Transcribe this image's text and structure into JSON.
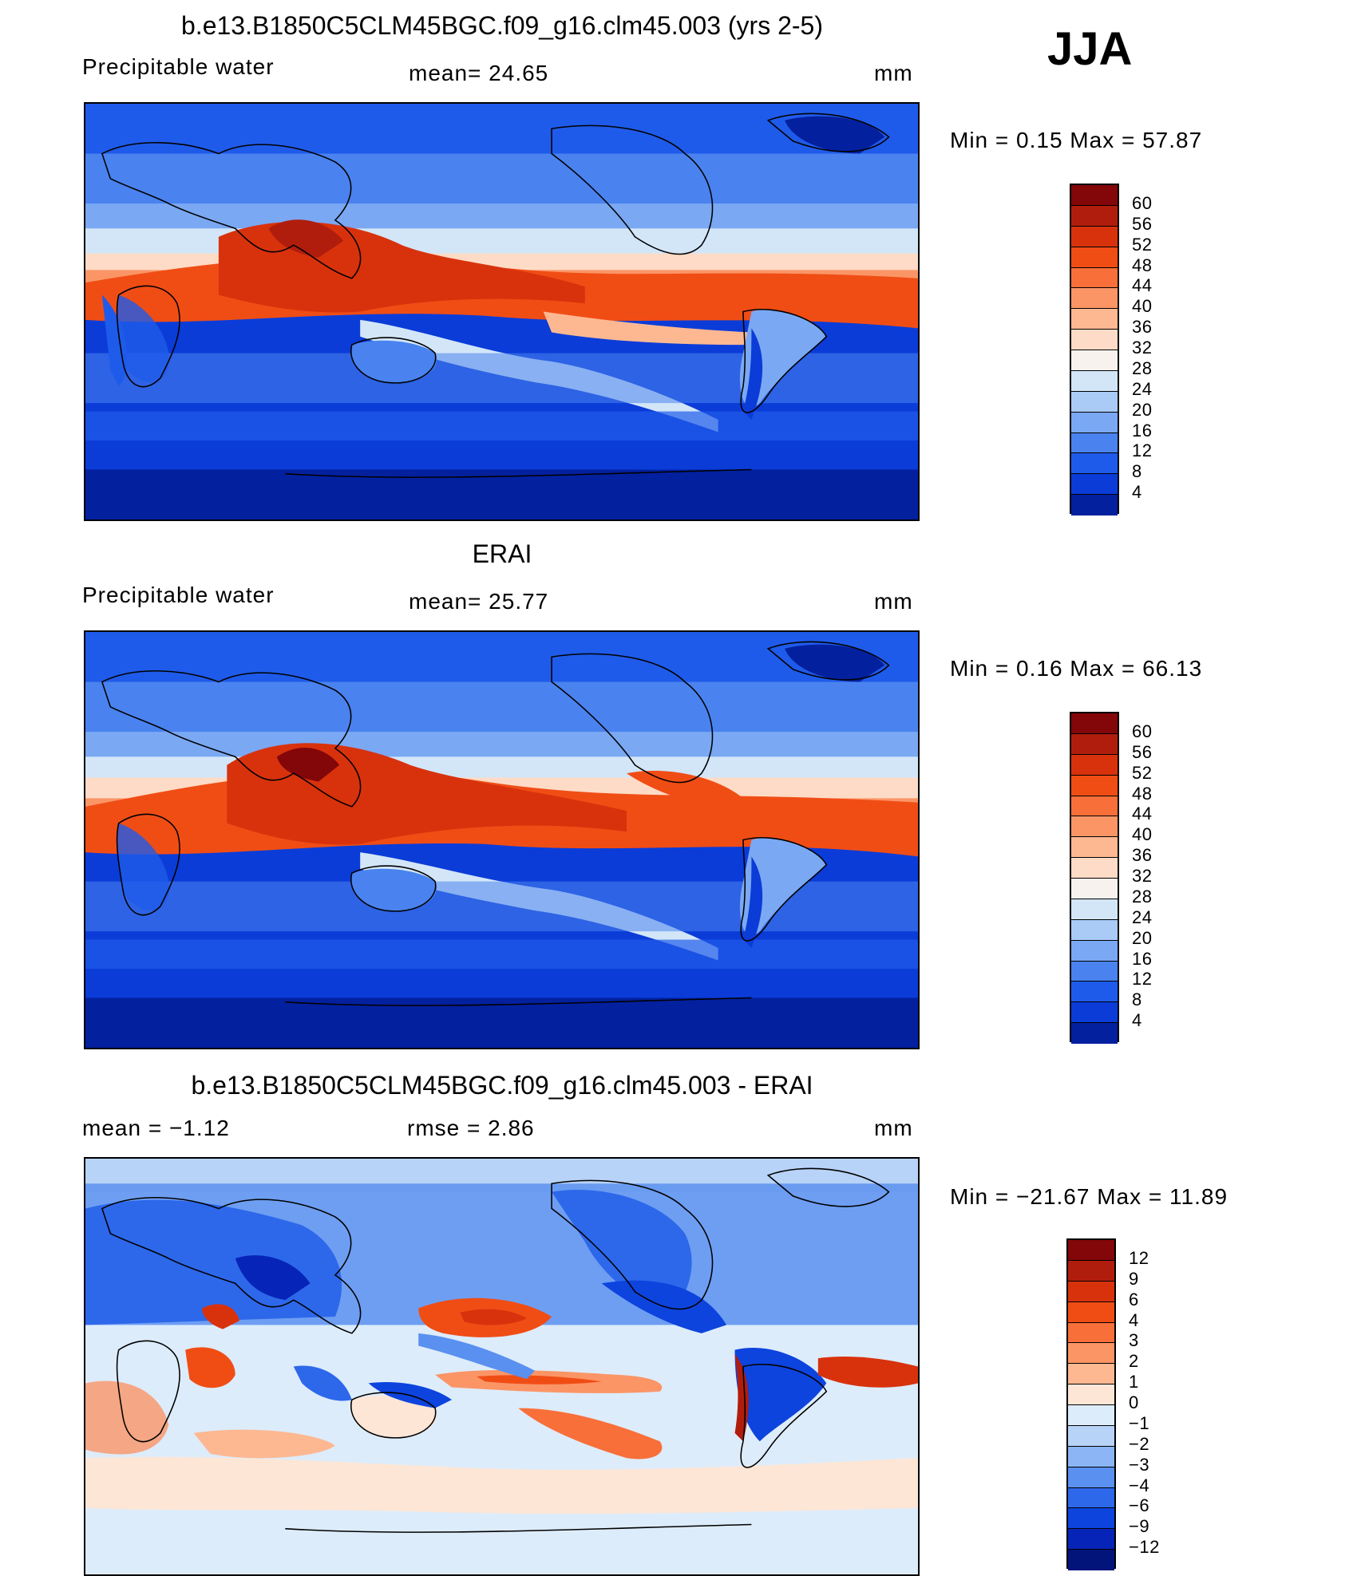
{
  "season": "JJA",
  "chart_data": [
    {
      "type": "heatmap",
      "title": "b.e13.B1850C5CLM45BGC.f09_g16.clm45.003 (yrs 2-5)",
      "left_label": "Precipitable  water",
      "center_label": "mean=   24.65",
      "units": "mm",
      "min_max": "Min  =     0.15  Max  =    57.87",
      "min": 0.15,
      "max": 57.87,
      "mean": 24.65,
      "colorbar": {
        "levels": [
          "60",
          "56",
          "52",
          "48",
          "44",
          "40",
          "36",
          "32",
          "28",
          "24",
          "20",
          "16",
          "12",
          "8",
          "4"
        ],
        "colors": [
          "#830608",
          "#b11d0c",
          "#d8320d",
          "#f04d15",
          "#f96f3a",
          "#fb9566",
          "#fdb892",
          "#fddbc6",
          "#f7f2ee",
          "#d2e6f8",
          "#a9cbf6",
          "#7aa8f3",
          "#4a83ef",
          "#1f5bea",
          "#0b3cd8",
          "#03209f"
        ]
      }
    },
    {
      "type": "heatmap",
      "title": "ERAI",
      "left_label": "Precipitable  water",
      "center_label": "mean=   25.77",
      "units": "mm",
      "min_max": "Min  =     0.16  Max  =    66.13",
      "min": 0.16,
      "max": 66.13,
      "mean": 25.77,
      "colorbar": {
        "levels": [
          "60",
          "56",
          "52",
          "48",
          "44",
          "40",
          "36",
          "32",
          "28",
          "24",
          "20",
          "16",
          "12",
          "8",
          "4"
        ],
        "colors": [
          "#830608",
          "#b11d0c",
          "#d8320d",
          "#f04d15",
          "#f96f3a",
          "#fb9566",
          "#fdb892",
          "#fddbc6",
          "#f7f2ee",
          "#d2e6f8",
          "#a9cbf6",
          "#7aa8f3",
          "#4a83ef",
          "#1f5bea",
          "#0b3cd8",
          "#03209f"
        ]
      }
    },
    {
      "type": "heatmap",
      "title": "b.e13.B1850C5CLM45BGC.f09_g16.clm45.003 - ERAI",
      "left_label": "mean  =    −1.12",
      "center_label": "rmse  =     2.86",
      "units": "mm",
      "min_max": "Min  = −21.67  Max  =    11.89",
      "min": -21.67,
      "max": 11.89,
      "mean": -1.12,
      "rmse": 2.86,
      "colorbar": {
        "levels": [
          "12",
          "9",
          "6",
          "4",
          "3",
          "2",
          "1",
          "0",
          "−1",
          "−2",
          "−3",
          "−4",
          "−6",
          "−9",
          "−12"
        ],
        "colors": [
          "#830608",
          "#b11d0c",
          "#d8320d",
          "#f04d15",
          "#f96f3a",
          "#fb9566",
          "#fdb892",
          "#fde6d6",
          "#ddecfb",
          "#b8d3f8",
          "#8cb5f5",
          "#5a90f0",
          "#2d68eb",
          "#0d44de",
          "#0625b8",
          "#02137a"
        ]
      }
    }
  ]
}
